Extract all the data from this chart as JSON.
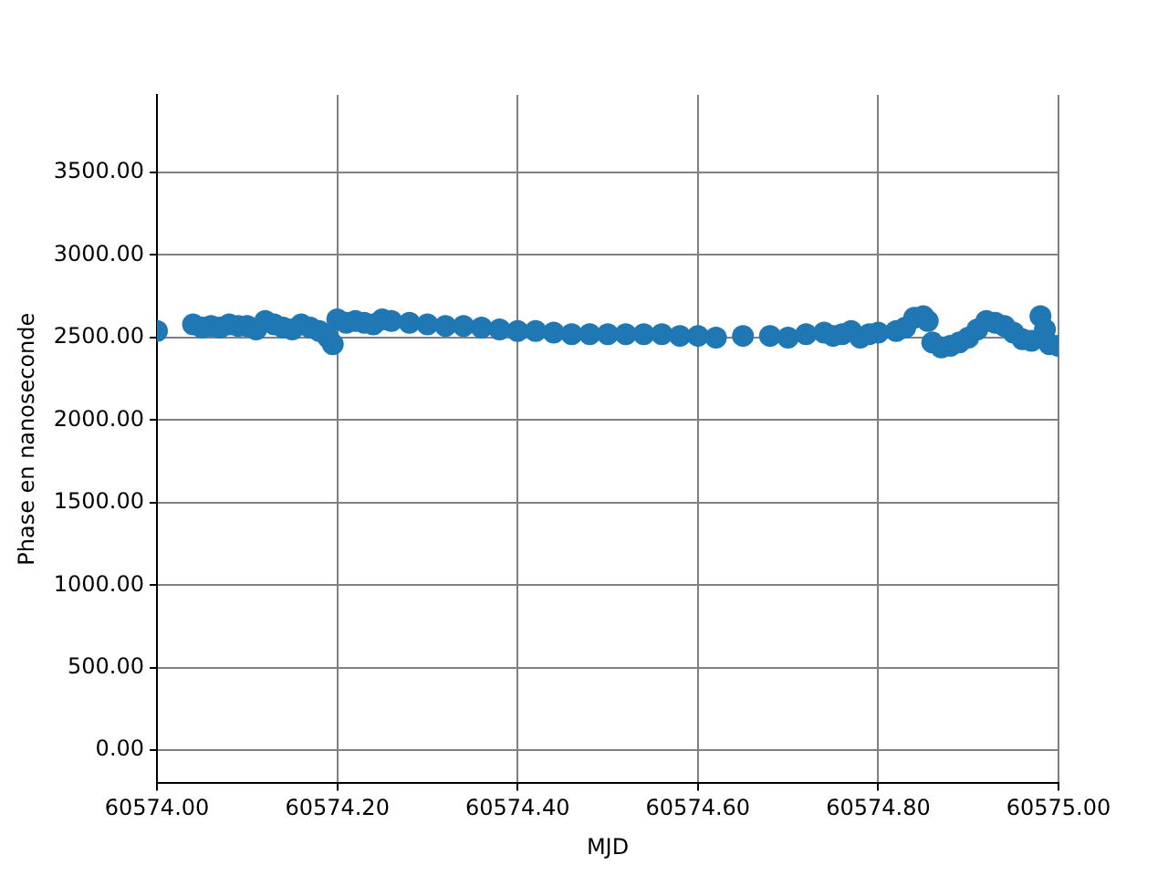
{
  "chart_data": {
    "type": "scatter",
    "xlabel": "MJD",
    "ylabel": "Phase en nanoseconde",
    "grid": true,
    "marker": "circle",
    "legend": false,
    "xlim": [
      60574,
      60575
    ],
    "xticks": [
      {
        "value": 60574,
        "label": "60574.00"
      },
      {
        "value": 60574.2,
        "label": "60574.20"
      },
      {
        "value": 60574.4,
        "label": "60574.40"
      },
      {
        "value": 60574.6,
        "label": "60574.60"
      },
      {
        "value": 60574.8,
        "label": "60574.80"
      },
      {
        "value": 60575,
        "label": "60575.00"
      }
    ],
    "ylim": [
      -200,
      3970
    ],
    "yticks": [
      {
        "value": 0,
        "label": "0.00"
      },
      {
        "value": 500,
        "label": "500.00"
      },
      {
        "value": 1000,
        "label": "1000.00"
      },
      {
        "value": 1500,
        "label": "1500.00"
      },
      {
        "value": 2000,
        "label": "2000.00"
      },
      {
        "value": 2500,
        "label": "2500.00"
      },
      {
        "value": 3000,
        "label": "3000.00"
      },
      {
        "value": 3500,
        "label": "3500.00"
      }
    ],
    "series": [
      {
        "color": "#1f77b4",
        "x": [
          60574.0,
          60574.04,
          60574.05,
          60574.06,
          60574.07,
          60574.08,
          60574.09,
          60574.1,
          60574.11,
          60574.12,
          60574.13,
          60574.14,
          60574.15,
          60574.16,
          60574.17,
          60574.18,
          60574.19,
          60574.195,
          60574.2,
          60574.21,
          60574.22,
          60574.23,
          60574.24,
          60574.25,
          60574.26,
          60574.28,
          60574.3,
          60574.32,
          60574.34,
          60574.36,
          60574.38,
          60574.4,
          60574.42,
          60574.44,
          60574.46,
          60574.48,
          60574.5,
          60574.52,
          60574.54,
          60574.56,
          60574.58,
          60574.6,
          60574.62,
          60574.65,
          60574.68,
          60574.7,
          60574.72,
          60574.74,
          60574.75,
          60574.76,
          60574.77,
          60574.78,
          60574.79,
          60574.8,
          60574.82,
          60574.83,
          60574.84,
          60574.85,
          60574.855,
          60574.86,
          60574.87,
          60574.88,
          60574.89,
          60574.9,
          60574.91,
          60574.92,
          60574.93,
          60574.94,
          60574.95,
          60574.96,
          60574.97,
          60574.98,
          60574.985,
          60574.99,
          60575.0
        ],
        "values": [
          2540,
          2580,
          2560,
          2570,
          2560,
          2580,
          2570,
          2570,
          2550,
          2600,
          2580,
          2560,
          2550,
          2580,
          2560,
          2540,
          2500,
          2460,
          2610,
          2590,
          2600,
          2590,
          2580,
          2610,
          2600,
          2590,
          2580,
          2570,
          2570,
          2560,
          2550,
          2540,
          2540,
          2530,
          2520,
          2520,
          2520,
          2520,
          2520,
          2520,
          2510,
          2510,
          2500,
          2510,
          2510,
          2500,
          2520,
          2530,
          2510,
          2520,
          2540,
          2500,
          2520,
          2530,
          2540,
          2560,
          2620,
          2630,
          2600,
          2470,
          2440,
          2450,
          2470,
          2500,
          2550,
          2600,
          2590,
          2570,
          2530,
          2490,
          2480,
          2630,
          2550,
          2460,
          2450
        ]
      }
    ]
  }
}
